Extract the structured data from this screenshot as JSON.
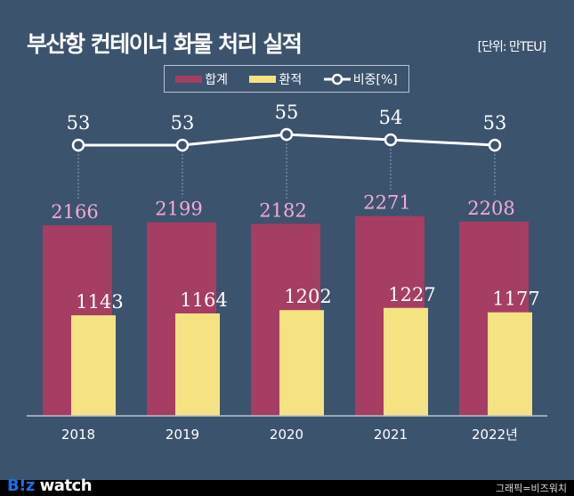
{
  "chart_data": {
    "type": "bar+line",
    "title": "부산항 컨테이너 화물 처리 실적",
    "unit": "[단위: 만TEU]",
    "categories": [
      "2018",
      "2019",
      "2020",
      "2021",
      "2022년"
    ],
    "series": [
      {
        "name": "합계",
        "type": "bar",
        "color": "#a63d63",
        "values": [
          2166,
          2199,
          2182,
          2271,
          2208
        ]
      },
      {
        "name": "환적",
        "type": "bar",
        "color": "#f5e283",
        "values": [
          1143,
          1164,
          1202,
          1227,
          1177
        ]
      },
      {
        "name": "비중[%]",
        "type": "line",
        "color": "#ffffff",
        "values": [
          53,
          53,
          55,
          54,
          53
        ]
      }
    ],
    "legend_position": "top-center",
    "grid": false
  },
  "footer": {
    "logo": "B!z watch",
    "credit": "그래픽=비즈워치"
  }
}
